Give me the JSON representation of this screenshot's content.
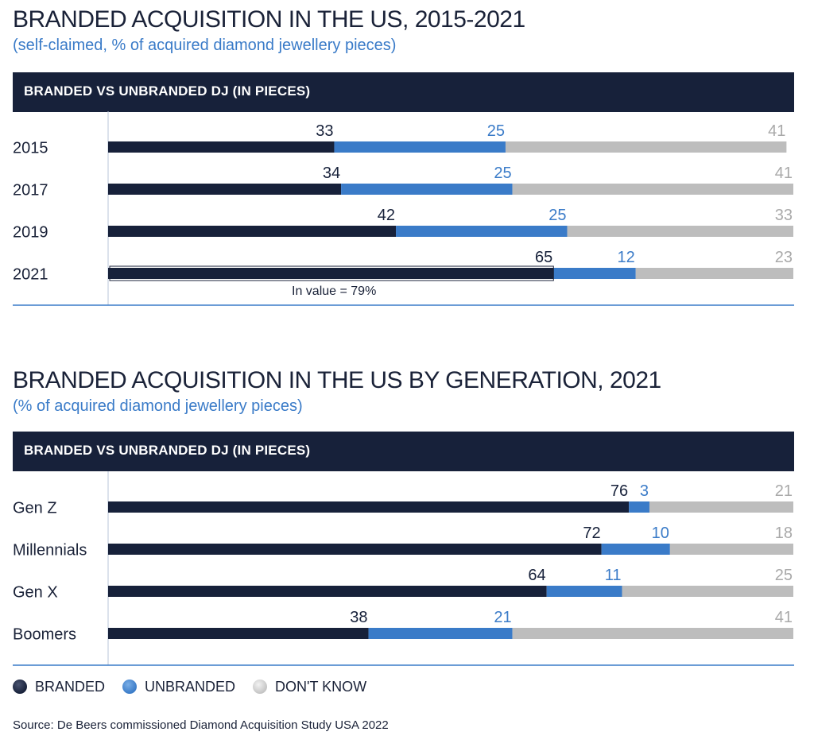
{
  "colors": {
    "branded": "#17213a",
    "unbranded": "#3a7bc8",
    "dont_know": "#bdbdbd",
    "axis": "#3a7bc8",
    "dont_know_text": "#a9a9a9"
  },
  "chart1": {
    "title": "BRANDED ACQUISITION IN THE US, 2015-2021",
    "subtitle": "(self-claimed, % of acquired diamond jewellery pieces)",
    "banner": "BRANDED VS UNBRANDED DJ (IN PIECES)",
    "annotation": "In value = 79%"
  },
  "chart2": {
    "title": "BRANDED ACQUISITION IN THE US BY GENERATION, 2021",
    "subtitle": "(% of acquired diamond jewellery pieces)",
    "banner": "BRANDED VS UNBRANDED DJ (IN PIECES)"
  },
  "legend": {
    "branded": "BRANDED",
    "unbranded": "UNBRANDED",
    "dont_know": "DON'T KNOW"
  },
  "source": "Source: De Beers commissioned Diamond Acquisition Study USA 2022",
  "chart_data": [
    {
      "type": "bar",
      "orientation": "horizontal-stacked",
      "title": "BRANDED ACQUISITION IN THE US, 2015-2021",
      "categories": [
        "2015",
        "2017",
        "2019",
        "2021"
      ],
      "series": [
        {
          "name": "BRANDED",
          "values": [
            33,
            34,
            42,
            65
          ]
        },
        {
          "name": "UNBRANDED",
          "values": [
            25,
            25,
            25,
            12
          ]
        },
        {
          "name": "DON'T KNOW",
          "values": [
            41,
            41,
            33,
            23
          ]
        }
      ],
      "xlim": [
        0,
        100
      ],
      "grid": false,
      "legend": "bottom-left",
      "annotations": [
        {
          "category": "2021",
          "text": "In value = 79%"
        }
      ]
    },
    {
      "type": "bar",
      "orientation": "horizontal-stacked",
      "title": "BRANDED ACQUISITION IN THE US BY GENERATION, 2021",
      "categories": [
        "Gen Z",
        "Millennials",
        "Gen X",
        "Boomers"
      ],
      "series": [
        {
          "name": "BRANDED",
          "values": [
            76,
            72,
            64,
            38
          ]
        },
        {
          "name": "UNBRANDED",
          "values": [
            3,
            10,
            11,
            21
          ]
        },
        {
          "name": "DON'T KNOW",
          "values": [
            21,
            18,
            25,
            41
          ]
        }
      ],
      "xlim": [
        0,
        100
      ],
      "grid": false,
      "legend": "bottom-left"
    }
  ]
}
